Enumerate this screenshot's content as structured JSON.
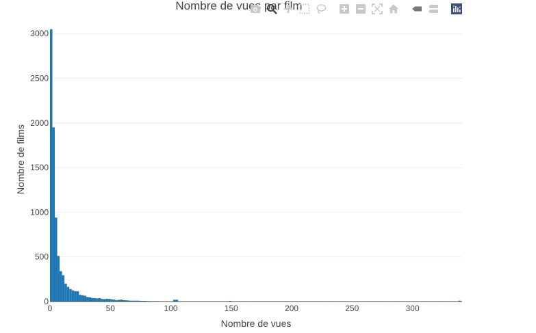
{
  "chart_data": {
    "type": "bar",
    "title": "Nombre de vues par film",
    "xlabel": "Nombre de vues",
    "ylabel": "Nombre de films",
    "xlim": [
      0,
      341
    ],
    "ylim": [
      0,
      3070
    ],
    "xticks": [
      0,
      50,
      100,
      150,
      200,
      250,
      300
    ],
    "yticks": [
      0,
      500,
      1000,
      1500,
      2000,
      2500,
      3000
    ],
    "bin_width": 2,
    "grid": true,
    "series_color": "#1f77b4",
    "bins": [
      {
        "x": 1,
        "y": 3050
      },
      {
        "x": 3,
        "y": 1950
      },
      {
        "x": 5,
        "y": 940
      },
      {
        "x": 7,
        "y": 510
      },
      {
        "x": 9,
        "y": 340
      },
      {
        "x": 11,
        "y": 295
      },
      {
        "x": 13,
        "y": 200
      },
      {
        "x": 15,
        "y": 165
      },
      {
        "x": 17,
        "y": 140
      },
      {
        "x": 19,
        "y": 125
      },
      {
        "x": 21,
        "y": 115
      },
      {
        "x": 23,
        "y": 115
      },
      {
        "x": 25,
        "y": 75
      },
      {
        "x": 27,
        "y": 70
      },
      {
        "x": 29,
        "y": 65
      },
      {
        "x": 31,
        "y": 50
      },
      {
        "x": 33,
        "y": 48
      },
      {
        "x": 35,
        "y": 40
      },
      {
        "x": 37,
        "y": 38
      },
      {
        "x": 39,
        "y": 35
      },
      {
        "x": 41,
        "y": 38
      },
      {
        "x": 43,
        "y": 30
      },
      {
        "x": 45,
        "y": 28
      },
      {
        "x": 47,
        "y": 32
      },
      {
        "x": 49,
        "y": 30
      },
      {
        "x": 51,
        "y": 25
      },
      {
        "x": 53,
        "y": 22
      },
      {
        "x": 55,
        "y": 15
      },
      {
        "x": 57,
        "y": 18
      },
      {
        "x": 59,
        "y": 22
      },
      {
        "x": 61,
        "y": 15
      },
      {
        "x": 63,
        "y": 14
      },
      {
        "x": 65,
        "y": 12
      },
      {
        "x": 67,
        "y": 10
      },
      {
        "x": 69,
        "y": 10
      },
      {
        "x": 71,
        "y": 10
      },
      {
        "x": 73,
        "y": 10
      },
      {
        "x": 75,
        "y": 8
      },
      {
        "x": 77,
        "y": 8
      },
      {
        "x": 79,
        "y": 8
      },
      {
        "x": 81,
        "y": 6
      },
      {
        "x": 83,
        "y": 5
      },
      {
        "x": 85,
        "y": 5
      },
      {
        "x": 87,
        "y": 5
      },
      {
        "x": 89,
        "y": 5
      },
      {
        "x": 91,
        "y": 4
      },
      {
        "x": 93,
        "y": 4
      },
      {
        "x": 95,
        "y": 4
      },
      {
        "x": 97,
        "y": 4
      },
      {
        "x": 99,
        "y": 4
      },
      {
        "x": 101,
        "y": 4
      },
      {
        "x": 103,
        "y": 20
      },
      {
        "x": 105,
        "y": 20
      },
      {
        "x": 107,
        "y": 4
      },
      {
        "x": 109,
        "y": 3
      },
      {
        "x": 111,
        "y": 3
      },
      {
        "x": 113,
        "y": 3
      },
      {
        "x": 115,
        "y": 3
      },
      {
        "x": 117,
        "y": 3
      },
      {
        "x": 119,
        "y": 3
      },
      {
        "x": 121,
        "y": 3
      },
      {
        "x": 123,
        "y": 3
      },
      {
        "x": 125,
        "y": 3
      },
      {
        "x": 127,
        "y": 3
      },
      {
        "x": 129,
        "y": 3
      },
      {
        "x": 131,
        "y": 3
      },
      {
        "x": 133,
        "y": 3
      },
      {
        "x": 135,
        "y": 3
      },
      {
        "x": 137,
        "y": 3
      },
      {
        "x": 139,
        "y": 3
      },
      {
        "x": 141,
        "y": 3
      },
      {
        "x": 143,
        "y": 3
      },
      {
        "x": 145,
        "y": 3
      },
      {
        "x": 147,
        "y": 3
      },
      {
        "x": 149,
        "y": 8
      },
      {
        "x": 155,
        "y": 4
      },
      {
        "x": 157,
        "y": 4
      },
      {
        "x": 159,
        "y": 4
      },
      {
        "x": 161,
        "y": 4
      },
      {
        "x": 169,
        "y": 4
      },
      {
        "x": 175,
        "y": 4
      },
      {
        "x": 177,
        "y": 4
      },
      {
        "x": 181,
        "y": 4
      },
      {
        "x": 189,
        "y": 4
      },
      {
        "x": 191,
        "y": 4
      },
      {
        "x": 195,
        "y": 4
      },
      {
        "x": 197,
        "y": 4
      },
      {
        "x": 199,
        "y": 4
      },
      {
        "x": 203,
        "y": 4
      },
      {
        "x": 205,
        "y": 4
      },
      {
        "x": 207,
        "y": 4
      },
      {
        "x": 213,
        "y": 4
      },
      {
        "x": 215,
        "y": 4
      },
      {
        "x": 217,
        "y": 4
      },
      {
        "x": 219,
        "y": 4
      },
      {
        "x": 221,
        "y": 4
      },
      {
        "x": 223,
        "y": 4
      },
      {
        "x": 225,
        "y": 4
      },
      {
        "x": 231,
        "y": 4
      },
      {
        "x": 233,
        "y": 4
      },
      {
        "x": 243,
        "y": 4
      },
      {
        "x": 245,
        "y": 4
      },
      {
        "x": 253,
        "y": 4
      },
      {
        "x": 255,
        "y": 4
      },
      {
        "x": 267,
        "y": 4
      },
      {
        "x": 275,
        "y": 4
      },
      {
        "x": 289,
        "y": 4
      },
      {
        "x": 303,
        "y": 4
      },
      {
        "x": 309,
        "y": 4
      },
      {
        "x": 325,
        "y": 4
      },
      {
        "x": 339,
        "y": 10
      }
    ]
  },
  "modebar": {
    "buttons": [
      {
        "icon": "camera-icon",
        "title": "Download plot as a png"
      },
      {
        "icon": "zoom-icon",
        "title": "Zoom"
      },
      {
        "icon": "pan-icon",
        "title": "Pan"
      },
      {
        "icon": "box-select-icon",
        "title": "Box Select"
      },
      {
        "icon": "lasso-select-icon",
        "title": "Lasso Select"
      },
      {
        "icon": "zoom-in-icon",
        "title": "Zoom in"
      },
      {
        "icon": "zoom-out-icon",
        "title": "Zoom out"
      },
      {
        "icon": "autoscale-icon",
        "title": "Autoscale"
      },
      {
        "icon": "reset-axes-icon",
        "title": "Reset axes"
      },
      {
        "icon": "hover-closest-icon",
        "title": "Show closest data on hover"
      },
      {
        "icon": "hover-compare-icon",
        "title": "Compare data on hover"
      },
      {
        "icon": "plotly-logo-icon",
        "title": "Produced with Plotly"
      }
    ]
  }
}
